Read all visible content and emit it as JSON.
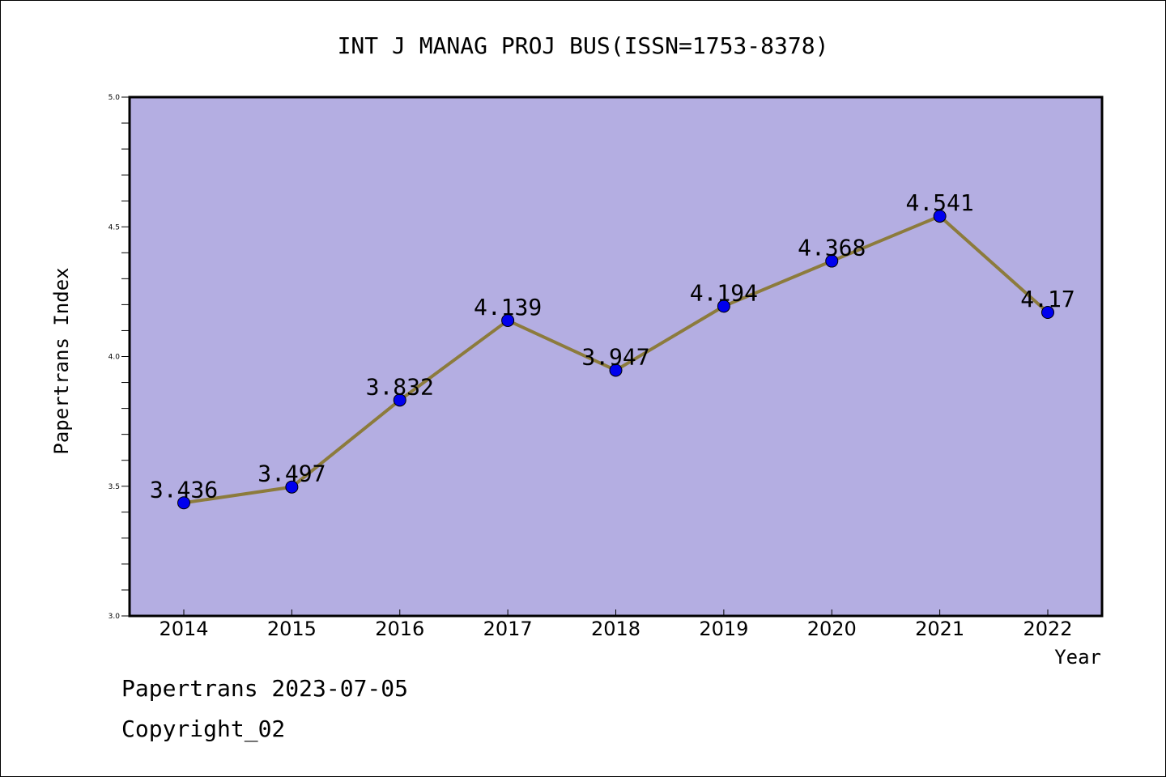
{
  "chart_data": {
    "type": "line",
    "title": "INT J MANAG PROJ BUS(ISSN=1753-8378)",
    "xlabel": "Year",
    "ylabel": "Papertrans Index",
    "categories": [
      "2014",
      "2015",
      "2016",
      "2017",
      "2018",
      "2019",
      "2020",
      "2021",
      "2022"
    ],
    "series": [
      {
        "values": [
          3.436,
          3.497,
          3.832,
          4.139,
          3.947,
          4.194,
          4.368,
          4.541,
          4.17
        ],
        "labels": [
          "3.436",
          "3.497",
          "3.832",
          "4.139",
          "3.947",
          "4.194",
          "4.368",
          "4.541",
          "4.17"
        ]
      }
    ],
    "ylim": [
      3.0,
      5.0
    ],
    "yticks": [
      "3.0",
      "3.5",
      "4.0",
      "4.5",
      "5.0"
    ],
    "grid": false,
    "colors": {
      "plot_background": "#b4aee2",
      "line": "#8c7b3c",
      "marker": "#0000ee"
    }
  },
  "footer": {
    "line1": "Papertrans 2023-07-05",
    "line2": "Copyright_02"
  }
}
